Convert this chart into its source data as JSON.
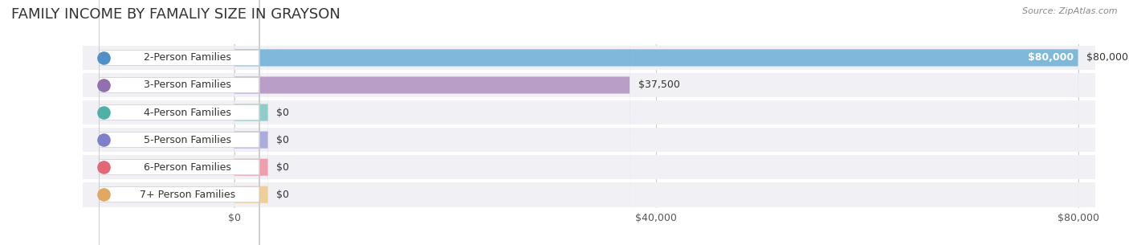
{
  "title": "FAMILY INCOME BY FAMALIY SIZE IN GRAYSON",
  "source": "Source: ZipAtlas.com",
  "categories": [
    "2-Person Families",
    "3-Person Families",
    "4-Person Families",
    "5-Person Families",
    "6-Person Families",
    "7+ Person Families"
  ],
  "values": [
    80000,
    37500,
    0,
    0,
    0,
    0
  ],
  "bar_colors": [
    "#6aaed6",
    "#b090c0",
    "#7ec8c0",
    "#a0a0d8",
    "#f090a0",
    "#f0c888"
  ],
  "dot_colors": [
    "#5090c8",
    "#9070b0",
    "#50b0a8",
    "#8080c8",
    "#e06878",
    "#e0a860"
  ],
  "max_value": 80000,
  "x_ticks": [
    0,
    40000,
    40000,
    80000
  ],
  "x_tick_labels": [
    "$0",
    "$40,000",
    "$40,000",
    "$80,000"
  ],
  "background_color": "#ffffff",
  "bar_bg_color": "#f0f0f5",
  "title_fontsize": 13,
  "label_fontsize": 9,
  "value_fontsize": 9,
  "source_fontsize": 8
}
